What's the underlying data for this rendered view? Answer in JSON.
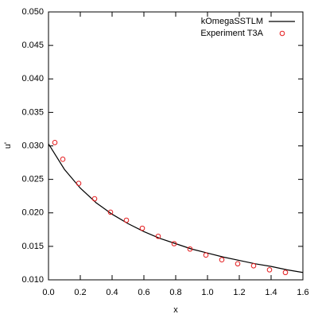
{
  "chart_data": {
    "type": "line",
    "x_label": "x",
    "y_label": "u'",
    "xlim": [
      0,
      1.6
    ],
    "xticks": [
      {
        "value": 0,
        "label": "0.0"
      },
      0.2,
      0.4,
      0.6,
      0.8,
      {
        "value": 1,
        "label": "1.0"
      },
      1.2,
      1.4,
      1.6
    ],
    "ylim": [
      0.01,
      0.05
    ],
    "yticks": [
      {
        "value": 0.01,
        "label": "0.010"
      },
      0.015,
      {
        "value": 0.02,
        "label": "0.020"
      },
      0.025,
      {
        "value": 0.03,
        "label": "0.030"
      },
      0.035,
      {
        "value": 0.04,
        "label": "0.040"
      },
      0.045,
      {
        "value": 0.05,
        "label": "0.050"
      }
    ],
    "legend": "top-right",
    "series": [
      {
        "name": "kOmegaSSTLM",
        "color": "#000000",
        "style": "line",
        "x": [
          0,
          0.1,
          0.2,
          0.3,
          0.4,
          0.5,
          0.6,
          0.7,
          0.8,
          0.9,
          1.0,
          1.1,
          1.2,
          1.3,
          1.4,
          1.5,
          1.6
        ],
        "values": [
          0.0303,
          0.0265,
          0.0237,
          0.0215,
          0.0198,
          0.0184,
          0.0172,
          0.0162,
          0.0154,
          0.0146,
          0.014,
          0.0134,
          0.0129,
          0.0124,
          0.012,
          0.0115,
          0.0111
        ]
      },
      {
        "name": "Experiment T3A",
        "color": "#e41a1c",
        "style": "points",
        "x": [
          0.04,
          0.09,
          0.19,
          0.29,
          0.39,
          0.49,
          0.59,
          0.69,
          0.79,
          0.89,
          0.99,
          1.09,
          1.19,
          1.29,
          1.39,
          1.49
        ],
        "values": [
          0.0305,
          0.028,
          0.0244,
          0.0221,
          0.0201,
          0.0189,
          0.0177,
          0.0165,
          0.0154,
          0.0146,
          0.0137,
          0.013,
          0.0124,
          0.0121,
          0.0115,
          0.0111
        ]
      }
    ]
  }
}
